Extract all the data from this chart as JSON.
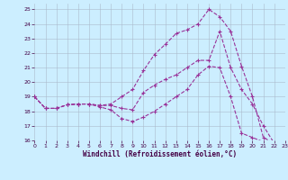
{
  "background_color": "#cceeff",
  "grid_color": "#aabbcc",
  "line_color": "#993399",
  "xlim": [
    0,
    23
  ],
  "ylim": [
    16,
    25.4
  ],
  "yticks": [
    16,
    17,
    18,
    19,
    20,
    21,
    22,
    23,
    24,
    25
  ],
  "xticks": [
    0,
    1,
    2,
    3,
    4,
    5,
    6,
    7,
    8,
    9,
    10,
    11,
    12,
    13,
    14,
    15,
    16,
    17,
    18,
    19,
    20,
    21,
    22,
    23
  ],
  "xlabel": "Windchill (Refroidissement éolien,°C)",
  "series_x": [
    0,
    1,
    2,
    3,
    4,
    5,
    6,
    7,
    8,
    9,
    10,
    11,
    12,
    13,
    14,
    15,
    16,
    17,
    18,
    19,
    20,
    21,
    22,
    23
  ],
  "series": [
    [
      19.0,
      18.2,
      18.2,
      18.45,
      18.5,
      18.5,
      18.3,
      18.1,
      17.5,
      17.3,
      17.6,
      18.0,
      18.5,
      19.0,
      19.5,
      20.5,
      21.1,
      21.0,
      19.0,
      16.5,
      16.2,
      15.9,
      15.8,
      15.75
    ],
    [
      19.0,
      18.2,
      18.2,
      18.45,
      18.5,
      18.5,
      18.4,
      18.5,
      19.0,
      19.5,
      20.8,
      21.9,
      22.6,
      23.35,
      23.6,
      24.0,
      25.0,
      24.5,
      23.5,
      21.1,
      19.0,
      16.2,
      15.8,
      15.75
    ],
    [
      19.0,
      18.2,
      18.2,
      18.45,
      18.5,
      18.5,
      18.4,
      18.4,
      18.2,
      18.1,
      19.3,
      19.8,
      20.2,
      20.5,
      21.0,
      21.5,
      21.5,
      23.5,
      21.0,
      19.5,
      18.5,
      17.0,
      15.8,
      15.75
    ]
  ],
  "xlabel_fontsize": 5.5,
  "tick_fontsize": 4.5,
  "linewidth": 0.8,
  "markersize": 3.0
}
